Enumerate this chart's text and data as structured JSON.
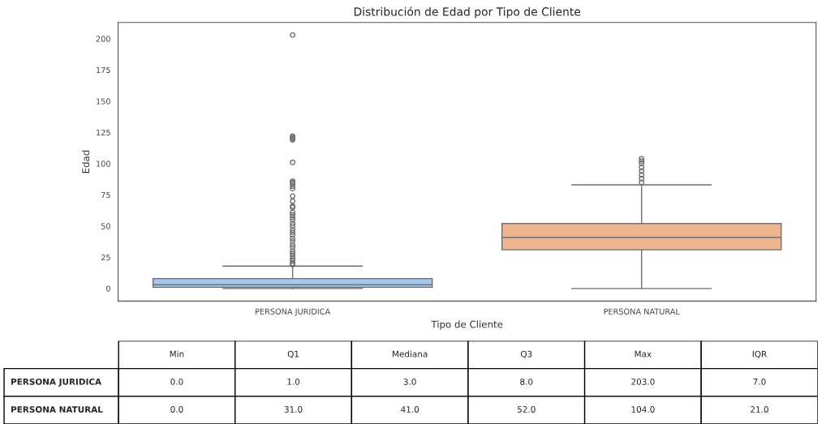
{
  "chart_data": [
    {
      "type": "box",
      "title": "Distribución de Edad por Tipo de Cliente",
      "xlabel": "Tipo de Cliente",
      "ylabel": "Edad",
      "categories": [
        "PERSONA JURIDICA",
        "PERSONA NATURAL"
      ],
      "colors": [
        "#a7c8ed",
        "#efb590"
      ],
      "boxes": [
        {
          "low": 0,
          "q1": 1,
          "median": 3,
          "q3": 8,
          "high": 18,
          "outliers": [
            19,
            20,
            22,
            24,
            26,
            28,
            30,
            33,
            35,
            38,
            40,
            43,
            45,
            47,
            50,
            52,
            55,
            57,
            59,
            61,
            65,
            66,
            70,
            74,
            80,
            82,
            84,
            85,
            86,
            101,
            119,
            120,
            121,
            122,
            203
          ]
        },
        {
          "low": 0,
          "q1": 31,
          "median": 41,
          "q3": 52,
          "high": 83,
          "outliers": [
            85,
            88,
            91,
            94,
            97,
            100,
            102,
            104
          ]
        }
      ],
      "ylim": [
        -10,
        213
      ],
      "yticks": [
        0,
        25,
        50,
        75,
        100,
        125,
        150,
        175,
        200
      ],
      "grid": false,
      "legend": false
    },
    {
      "type": "other",
      "categories": [
        "Min",
        "Q1",
        "Mediana",
        "Q3",
        "Max",
        "IQR"
      ],
      "y_categories": [
        "PERSONA JURIDICA",
        "PERSONA NATURAL"
      ],
      "cell_labels": [
        [
          "0.0",
          "1.0",
          "3.0",
          "8.0",
          "203.0",
          "7.0"
        ],
        [
          "0.0",
          "31.0",
          "41.0",
          "52.0",
          "104.0",
          "21.0"
        ]
      ]
    }
  ]
}
